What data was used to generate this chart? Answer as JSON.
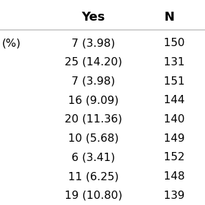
{
  "header_row": [
    "Yes",
    "N"
  ],
  "left_label": "(%)",
  "yes_values": [
    "7 (3.98)",
    "25 (14.20)",
    "7 (3.98)",
    "16 (9.09)",
    "20 (11.36)",
    "10 (5.68)",
    "6 (3.41)",
    "11 (6.25)",
    "19 (10.80)"
  ],
  "no_values": [
    "150 ",
    "131 ",
    "151 ",
    "144 ",
    "140 ",
    "149 ",
    "152 ",
    "148 ",
    "139 "
  ],
  "bg_color": "#ffffff",
  "header_color": "#000000",
  "text_color": "#000000",
  "line_color": "#bbbbbb",
  "header_fontsize": 13,
  "body_fontsize": 11.5,
  "label_fontsize": 11.5
}
